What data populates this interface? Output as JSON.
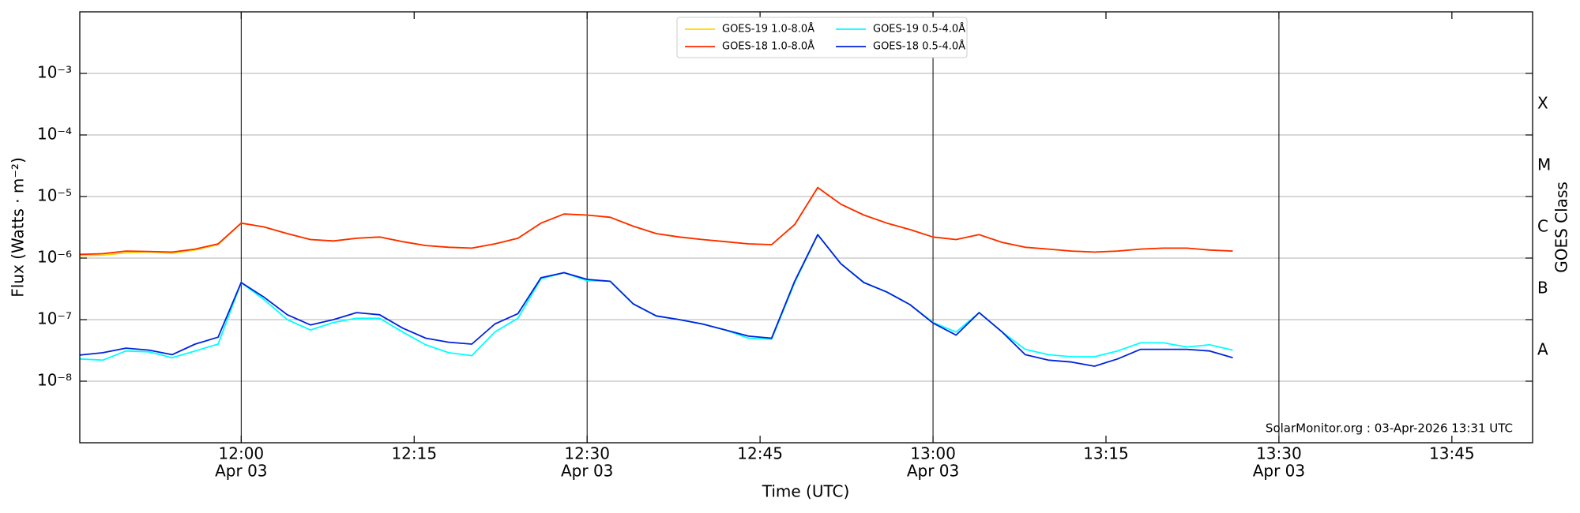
{
  "chart_data": {
    "type": "line",
    "xlabel": "Time (UTC)",
    "ylabel": "Flux (Watts · m⁻²)",
    "y2label": "GOES Class",
    "annotation": "SolarMonitor.org : 03-Apr-2026 13:31 UTC",
    "log_y": true,
    "grid": true,
    "legend_position": "upper center",
    "xlim": [
      "11:46",
      "13:52"
    ],
    "xticks": [
      {
        "value": "12:00",
        "label": "12:00",
        "date": "Apr 03"
      },
      {
        "value": "12:15",
        "label": "12:15"
      },
      {
        "value": "12:30",
        "label": "12:30",
        "date": "Apr 03"
      },
      {
        "value": "12:45",
        "label": "12:45"
      },
      {
        "value": "13:00",
        "label": "13:00",
        "date": "Apr 03"
      },
      {
        "value": "13:15",
        "label": "13:15"
      },
      {
        "value": "13:30",
        "label": "13:30",
        "date": "Apr 03"
      },
      {
        "value": "13:45",
        "label": "13:45"
      }
    ],
    "ylim": [
      1e-09,
      0.01
    ],
    "yticks": [
      {
        "value": 1e-08,
        "label": "10⁻⁸"
      },
      {
        "value": 1e-07,
        "label": "10⁻⁷"
      },
      {
        "value": 1e-06,
        "label": "10⁻⁶"
      },
      {
        "value": 1e-05,
        "label": "10⁻⁵"
      },
      {
        "value": 0.0001,
        "label": "10⁻⁴"
      },
      {
        "value": 0.001,
        "label": "10⁻³"
      }
    ],
    "y2lim": [
      1e-09,
      0.01
    ],
    "y2ticks": [
      {
        "value": 3.16e-08,
        "label": "A"
      },
      {
        "value": 3.16e-07,
        "label": "B"
      },
      {
        "value": 3.16e-06,
        "label": "C"
      },
      {
        "value": 3.16e-05,
        "label": "M"
      },
      {
        "value": 0.000316,
        "label": "X"
      }
    ],
    "x": [
      "11:46",
      "11:48",
      "11:50",
      "11:52",
      "11:54",
      "11:56",
      "11:58",
      "12:00",
      "12:02",
      "12:04",
      "12:06",
      "12:08",
      "12:10",
      "12:12",
      "12:14",
      "12:16",
      "12:18",
      "12:20",
      "12:22",
      "12:24",
      "12:26",
      "12:28",
      "12:30",
      "12:32",
      "12:34",
      "12:36",
      "12:38",
      "12:40",
      "12:42",
      "12:44",
      "12:46",
      "12:48",
      "12:50",
      "12:52",
      "12:54",
      "12:56",
      "12:58",
      "13:00",
      "13:02",
      "13:04",
      "13:06",
      "13:08",
      "13:10",
      "13:12",
      "13:14",
      "13:16",
      "13:18",
      "13:20",
      "13:22",
      "13:24",
      "13:26"
    ],
    "series": [
      {
        "name": "GOES-19 1.0-8.0Å",
        "color": "#ffd700",
        "values": [
          1.1e-06,
          1.12e-06,
          1.22e-06,
          1.25e-06,
          1.2e-06,
          1.35e-06,
          1.65e-06,
          3.7e-06,
          3.2e-06,
          2.5e-06,
          2e-06,
          1.9e-06,
          2.1e-06,
          2.2e-06,
          1.85e-06,
          1.6e-06,
          1.5e-06,
          1.45e-06,
          1.7e-06,
          2.1e-06,
          3.7e-06,
          5.2e-06,
          5e-06,
          4.6e-06,
          3.3e-06,
          2.5e-06,
          2.2e-06,
          2e-06,
          1.85e-06,
          1.7e-06,
          1.65e-06,
          3.5e-06,
          1.4e-05,
          7.5e-06,
          5e-06,
          3.7e-06,
          2.9e-06,
          2.2e-06,
          2e-06,
          2.4e-06,
          1.8e-06,
          1.5e-06,
          1.4e-06,
          1.3e-06,
          1.25e-06,
          1.3e-06,
          1.4e-06,
          1.45e-06,
          1.45e-06,
          1.35e-06,
          1.3e-06
        ]
      },
      {
        "name": "GOES-18 1.0-8.0Å",
        "color": "#ff2a00",
        "values": [
          1.15e-06,
          1.18e-06,
          1.3e-06,
          1.28e-06,
          1.25e-06,
          1.4e-06,
          1.7e-06,
          3.7e-06,
          3.2e-06,
          2.5e-06,
          2e-06,
          1.9e-06,
          2.1e-06,
          2.2e-06,
          1.85e-06,
          1.6e-06,
          1.5e-06,
          1.45e-06,
          1.7e-06,
          2.1e-06,
          3.7e-06,
          5.2e-06,
          5e-06,
          4.6e-06,
          3.3e-06,
          2.5e-06,
          2.2e-06,
          2e-06,
          1.85e-06,
          1.7e-06,
          1.65e-06,
          3.5e-06,
          1.4e-05,
          7.5e-06,
          5e-06,
          3.7e-06,
          2.9e-06,
          2.2e-06,
          2e-06,
          2.4e-06,
          1.8e-06,
          1.5e-06,
          1.4e-06,
          1.3e-06,
          1.25e-06,
          1.3e-06,
          1.4e-06,
          1.45e-06,
          1.45e-06,
          1.35e-06,
          1.3e-06
        ]
      },
      {
        "name": "GOES-19 0.5-4.0Å",
        "color": "#00ffff",
        "values": [
          2.3e-08,
          2.2e-08,
          3.1e-08,
          3e-08,
          2.4e-08,
          3.1e-08,
          4e-08,
          4e-07,
          2.1e-07,
          1e-07,
          6.8e-08,
          9e-08,
          1.05e-07,
          1.05e-07,
          6.3e-08,
          3.9e-08,
          2.9e-08,
          2.6e-08,
          6.3e-08,
          1.05e-07,
          4.6e-07,
          5.8e-07,
          4.3e-07,
          4.2e-07,
          1.8e-07,
          1.15e-07,
          1e-07,
          8.5e-08,
          6.8e-08,
          5e-08,
          4.8e-08,
          4e-07,
          2.4e-06,
          8.1e-07,
          4e-07,
          2.8e-07,
          1.75e-07,
          9e-08,
          6.3e-08,
          1.3e-07,
          6.3e-08,
          3.3e-08,
          2.7e-08,
          2.5e-08,
          2.5e-08,
          3.1e-08,
          4.2e-08,
          4.2e-08,
          3.6e-08,
          3.9e-08,
          3.2e-08
        ]
      },
      {
        "name": "GOES-18 0.5-4.0Å",
        "color": "#0022dd",
        "values": [
          2.66e-08,
          2.9e-08,
          3.45e-08,
          3.2e-08,
          2.7e-08,
          4e-08,
          5.2e-08,
          4e-07,
          2.3e-07,
          1.2e-07,
          8.2e-08,
          1e-07,
          1.3e-07,
          1.2e-07,
          7.3e-08,
          5e-08,
          4.3e-08,
          4e-08,
          8.5e-08,
          1.25e-07,
          4.8e-07,
          5.8e-07,
          4.5e-07,
          4.2e-07,
          1.8e-07,
          1.15e-07,
          1e-07,
          8.5e-08,
          6.8e-08,
          5.4e-08,
          5e-08,
          4.2e-07,
          2.4e-06,
          8.1e-07,
          4e-07,
          2.8e-07,
          1.75e-07,
          8.8e-08,
          5.6e-08,
          1.3e-07,
          6.3e-08,
          2.7e-08,
          2.2e-08,
          2.05e-08,
          1.75e-08,
          2.3e-08,
          3.3e-08,
          3.3e-08,
          3.3e-08,
          3.1e-08,
          2.4e-08
        ]
      }
    ]
  }
}
